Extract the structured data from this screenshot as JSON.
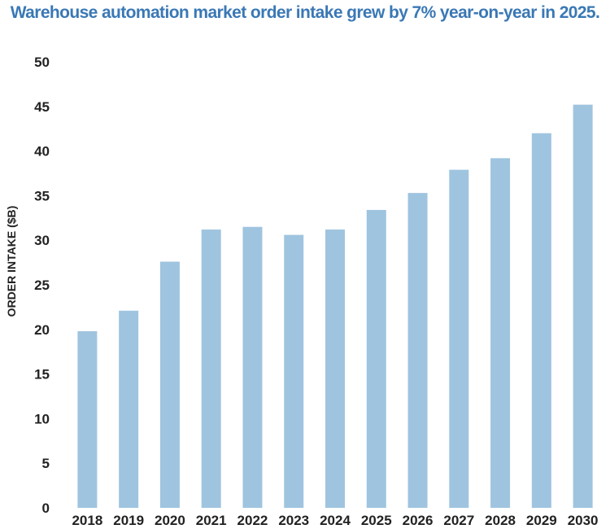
{
  "chart_data": {
    "type": "bar",
    "title": "Warehouse automation market order intake grew by 7% year-on-year in 2025.",
    "xlabel": "",
    "ylabel": "ORDER INTAKE ($B)",
    "categories": [
      "2018",
      "2019",
      "2020",
      "2021",
      "2022",
      "2023",
      "2024",
      "2025",
      "2026",
      "2027",
      "2028",
      "2029",
      "2030"
    ],
    "values": [
      19.8,
      22.1,
      27.6,
      31.2,
      31.5,
      30.6,
      31.2,
      33.4,
      35.3,
      37.9,
      39.2,
      42.0,
      45.2
    ],
    "ylim": [
      0,
      50
    ],
    "yticks": [
      "0",
      "5",
      "10",
      "15",
      "20",
      "25",
      "30",
      "35",
      "40",
      "45",
      "50"
    ],
    "grid": false,
    "bar_color": "#9fc4df",
    "title_color": "#3a78b5"
  }
}
